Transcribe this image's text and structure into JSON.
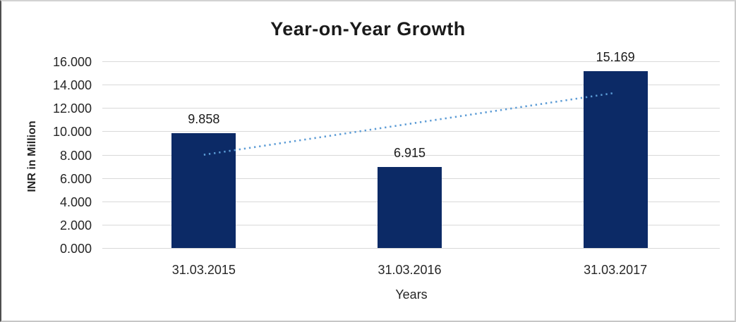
{
  "chart_data": {
    "type": "bar",
    "title": "Year-on-Year Growth",
    "xlabel": "Years",
    "ylabel": "INR in Million",
    "categories": [
      "31.03.2015",
      "31.03.2016",
      "31.03.2017"
    ],
    "values": [
      9.858,
      6.915,
      15.169
    ],
    "data_labels": [
      "9.858",
      "6.915",
      "15.169"
    ],
    "ylim": [
      0,
      16
    ],
    "ytick_step": 2,
    "ytick_labels": [
      "0.000",
      "2.000",
      "4.000",
      "6.000",
      "8.000",
      "10.000",
      "12.000",
      "14.000",
      "16.000"
    ],
    "grid": true,
    "legend": false,
    "trendline": {
      "type": "linear",
      "style": "dotted",
      "start_value": 7.99,
      "end_value": 13.3
    },
    "colors": {
      "bar": "#0c2a66",
      "trendline": "#5b9bd5",
      "gridline": "#d9d9d9",
      "text": "#262626"
    }
  }
}
